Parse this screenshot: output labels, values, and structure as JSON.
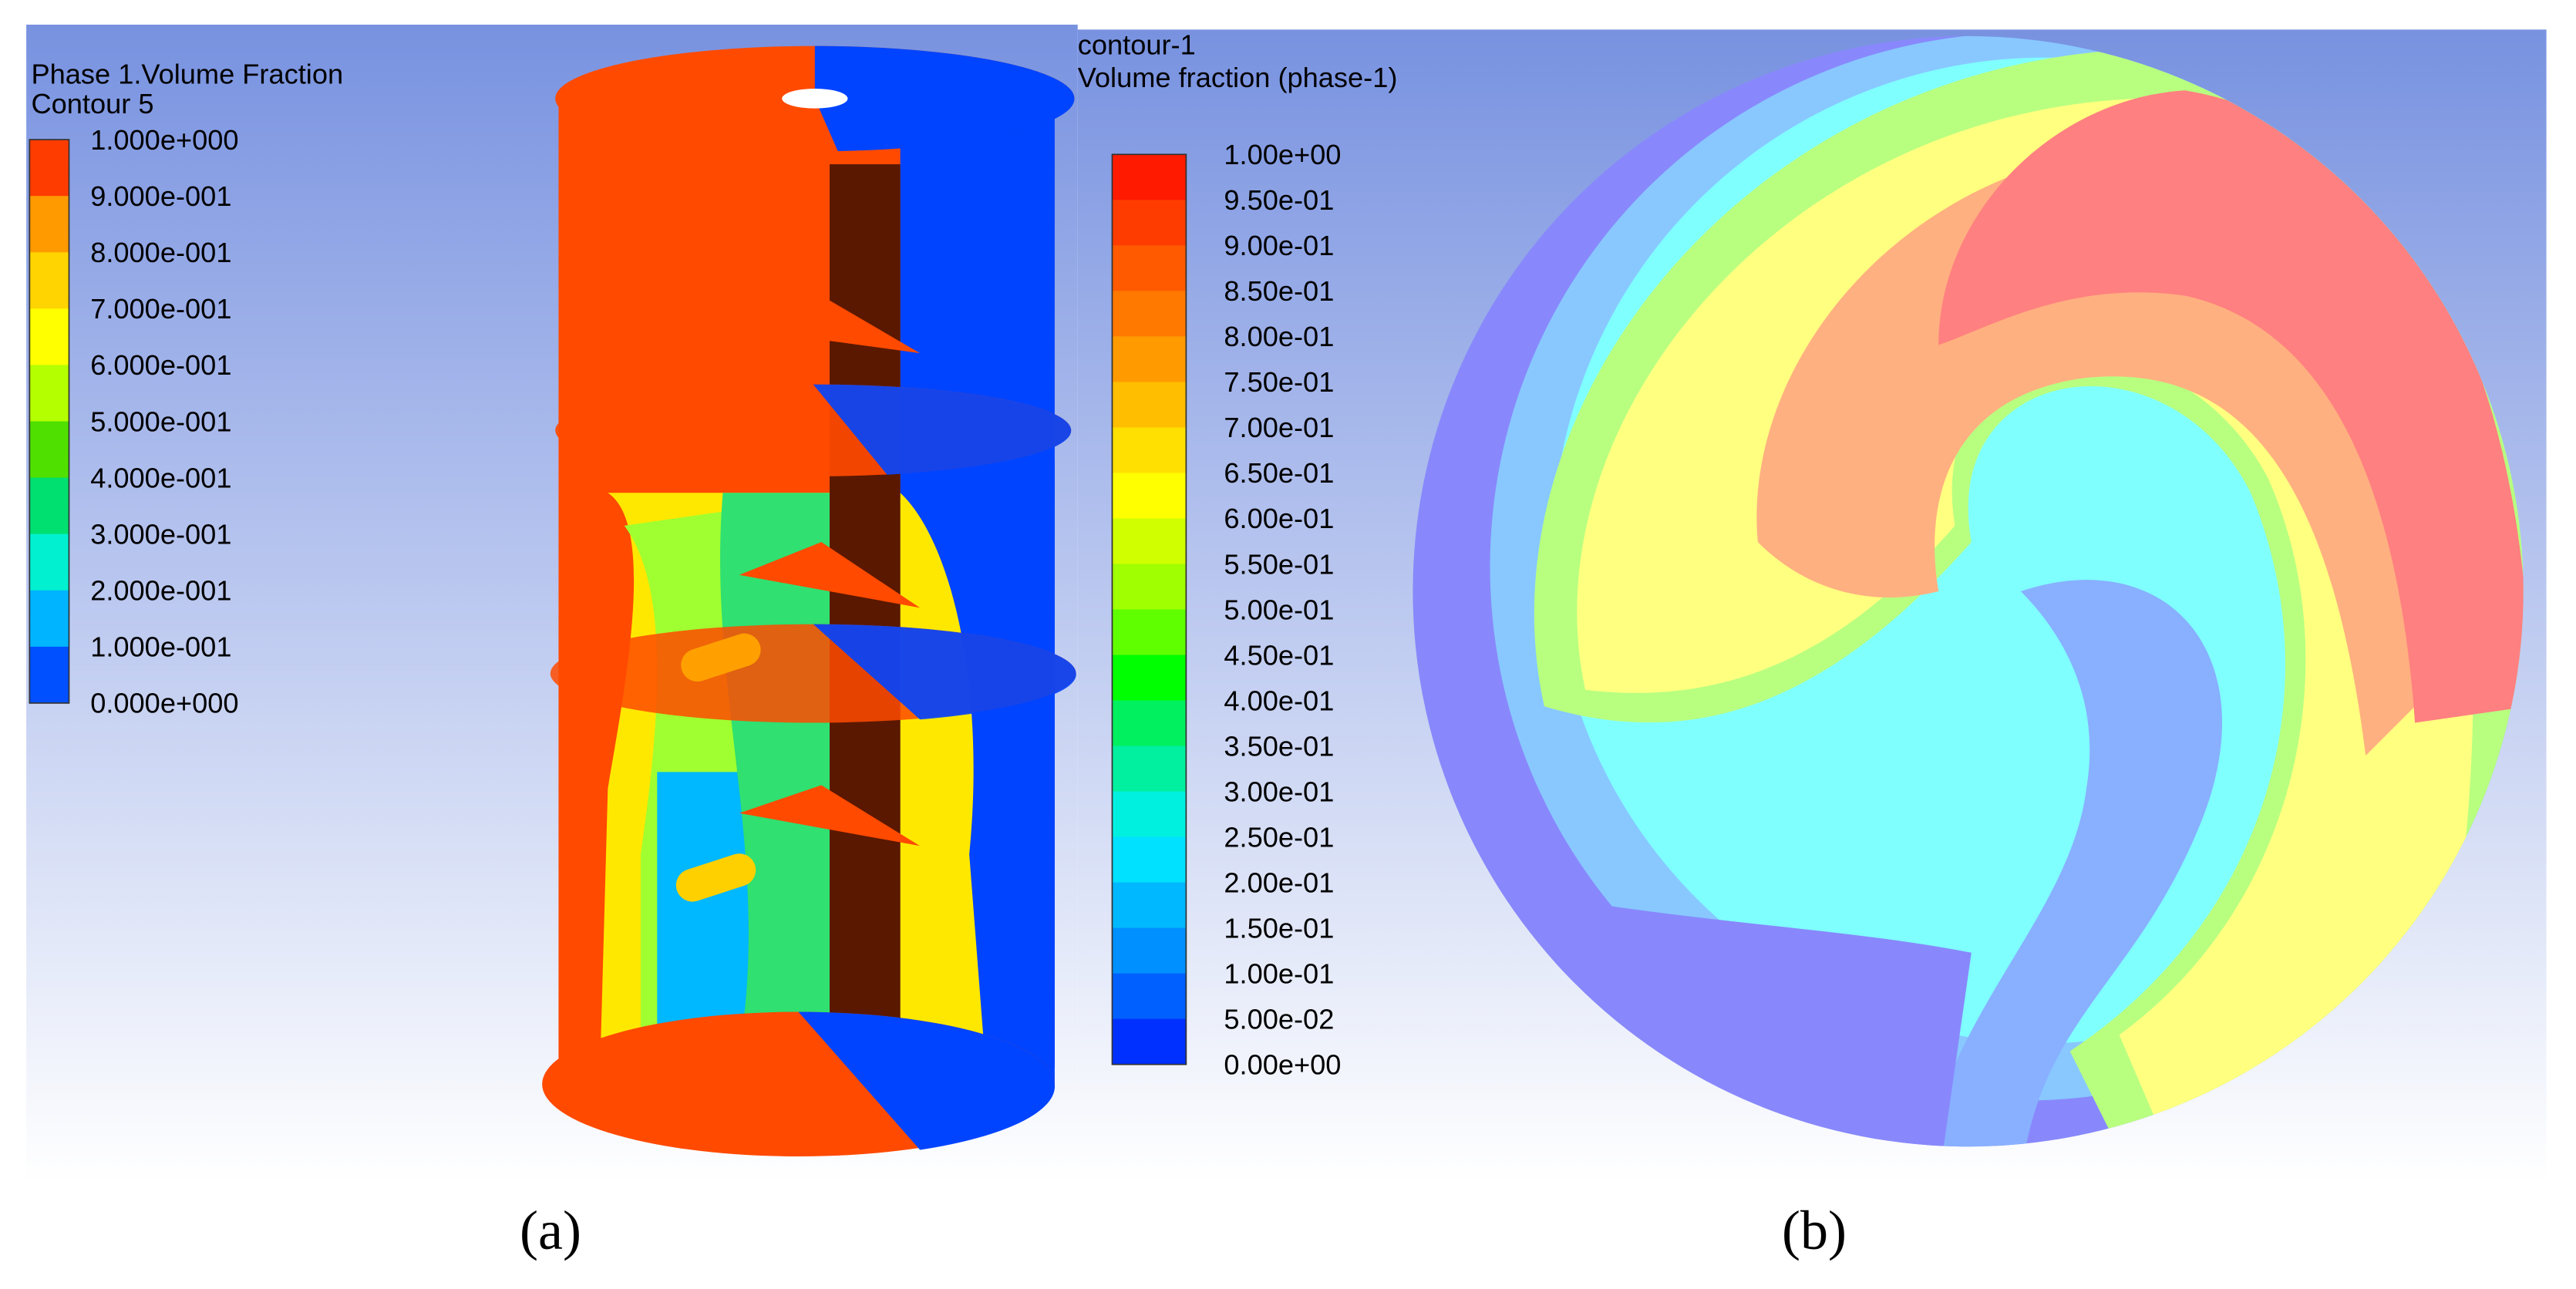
{
  "panel_a": {
    "legend": {
      "title": "Phase 1.Volume Fraction",
      "subtitle": "Contour 5",
      "labels": [
        "1.000e+000",
        "9.000e-001",
        "8.000e-001",
        "7.000e-001",
        "6.000e-001",
        "5.000e-001",
        "4.000e-001",
        "3.000e-001",
        "2.000e-001",
        "1.000e-001",
        "0.000e+000"
      ]
    },
    "caption": "(a)"
  },
  "panel_b": {
    "legend": {
      "title": "contour-1",
      "subtitle": "Volume fraction (phase-1)",
      "labels": [
        "1.00e+00",
        "9.50e-01",
        "9.00e-01",
        "8.50e-01",
        "8.00e-01",
        "7.50e-01",
        "7.00e-01",
        "6.50e-01",
        "6.00e-01",
        "5.50e-01",
        "5.00e-01",
        "4.50e-01",
        "4.00e-01",
        "3.50e-01",
        "3.00e-01",
        "2.50e-01",
        "2.00e-01",
        "1.50e-01",
        "1.00e-01",
        "5.00e-02",
        "0.00e+00"
      ]
    },
    "caption": "(b)"
  }
}
